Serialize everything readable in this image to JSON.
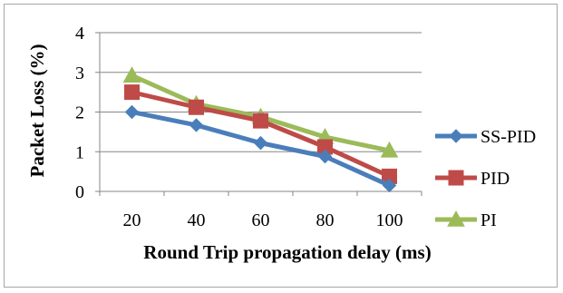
{
  "chart_data": {
    "type": "line",
    "title": "",
    "xlabel": "Round Trip propagation delay (ms)",
    "ylabel": "Packet Loss (%)",
    "categories": [
      "20",
      "40",
      "60",
      "80",
      "100"
    ],
    "ylim": [
      0,
      4
    ],
    "yticks": [
      "0",
      "1",
      "2",
      "3",
      "4"
    ],
    "grid": "horizontal",
    "legend": "right",
    "series": [
      {
        "name": "SS-PID",
        "values": [
          2.0,
          1.67,
          1.22,
          0.88,
          0.15
        ],
        "color": "#4a7ebb",
        "marker": "diamond"
      },
      {
        "name": "PID",
        "values": [
          2.5,
          2.12,
          1.78,
          1.12,
          0.38
        ],
        "color": "#be4b48",
        "marker": "square"
      },
      {
        "name": "PI",
        "values": [
          2.92,
          2.2,
          1.88,
          1.37,
          1.03
        ],
        "color": "#9bbb59",
        "marker": "triangle"
      }
    ]
  }
}
